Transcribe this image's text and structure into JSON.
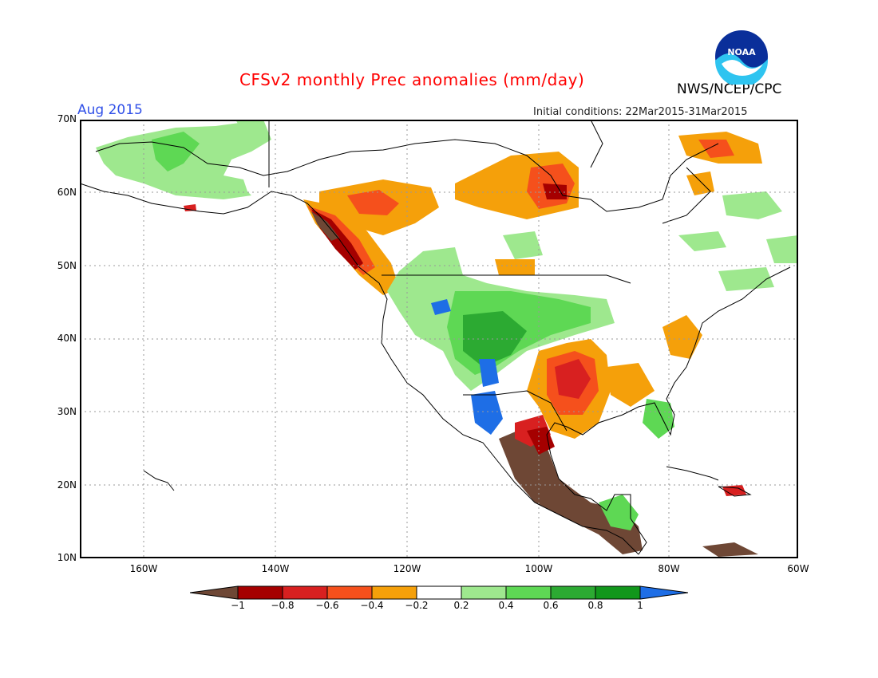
{
  "header": {
    "title": "CFSv2 monthly Prec anomalies (mm/day)",
    "agency": "NWS/NCEP/CPC",
    "logo_text": "NOAA",
    "period": "Aug 2015",
    "initial_conditions": "Initial conditions: 22Mar2015-31Mar2015"
  },
  "axes": {
    "lat_labels": [
      "70N",
      "60N",
      "50N",
      "40N",
      "30N",
      "20N",
      "10N"
    ],
    "lon_labels": [
      "160W",
      "140W",
      "120W",
      "100W",
      "80W",
      "60W"
    ]
  },
  "colorbar": {
    "tick_labels": [
      "−1",
      "−0.8",
      "−0.6",
      "−0.4",
      "−0.2",
      "0.2",
      "0.4",
      "0.6",
      "0.8",
      "1"
    ],
    "colors": {
      "lt_m1": "#6e4735",
      "m1_m08": "#a50000",
      "m08_m06": "#d82020",
      "m06_m04": "#f5501c",
      "m04_m02": "#f5a00a",
      "m02_02": "#ffffff",
      "p02_04": "#9ee88e",
      "p04_06": "#5ed854",
      "p06_08": "#2caa32",
      "p08_1": "#11971b",
      "gt_1": "#1e6ee6"
    }
  }
}
